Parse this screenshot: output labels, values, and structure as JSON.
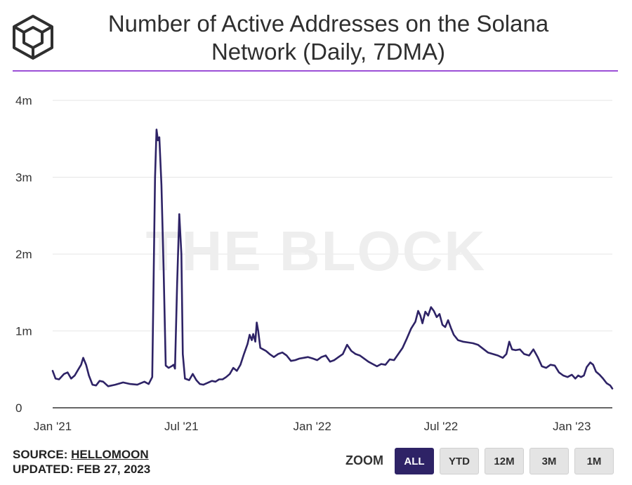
{
  "title": "Number of Active Addresses on the Solana Network (Daily, 7DMA)",
  "watermark": "THE BLOCK",
  "source_label": "SOURCE:",
  "source_name": "HELLOMOON",
  "updated": "UPDATED: FEB 27, 2023",
  "zoom": {
    "label": "ZOOM",
    "buttons": [
      "ALL",
      "YTD",
      "12M",
      "3M",
      "1M"
    ],
    "selected": "ALL"
  },
  "colors": {
    "line": "#2e2366",
    "accent": "#9b4fd6",
    "grid": "#e6e6e6"
  },
  "icon": "the-block-cube-logo",
  "chart_data": {
    "type": "line",
    "title": "Number of Active Addresses on the Solana Network (Daily, 7DMA)",
    "xlabel": "",
    "ylabel": "",
    "y_tick_labels": [
      "0",
      "1m",
      "2m",
      "3m",
      "4m"
    ],
    "y_ticks": [
      0,
      1000000,
      2000000,
      3000000,
      4000000
    ],
    "ylim": [
      0,
      4000000
    ],
    "x_tick_labels": [
      "Jan '21",
      "Jul '21",
      "Jan '22",
      "Jul '22",
      "Jan '23"
    ],
    "x_ticks": [
      "2021-01-01",
      "2021-07-01",
      "2022-01-01",
      "2022-07-01",
      "2023-01-01"
    ],
    "xlim": [
      "2021-01-01",
      "2023-02-27"
    ],
    "grid": true,
    "legend": "none",
    "series": [
      {
        "values": [
          [
            "2021-01-01",
            480000
          ],
          [
            "2021-01-05",
            380000
          ],
          [
            "2021-01-10",
            370000
          ],
          [
            "2021-01-17",
            440000
          ],
          [
            "2021-01-22",
            460000
          ],
          [
            "2021-01-27",
            380000
          ],
          [
            "2021-02-01",
            420000
          ],
          [
            "2021-02-06",
            500000
          ],
          [
            "2021-02-10",
            560000
          ],
          [
            "2021-02-13",
            650000
          ],
          [
            "2021-02-17",
            560000
          ],
          [
            "2021-02-21",
            420000
          ],
          [
            "2021-02-26",
            300000
          ],
          [
            "2021-03-03",
            290000
          ],
          [
            "2021-03-08",
            350000
          ],
          [
            "2021-03-13",
            340000
          ],
          [
            "2021-03-20",
            280000
          ],
          [
            "2021-03-30",
            300000
          ],
          [
            "2021-04-10",
            330000
          ],
          [
            "2021-04-20",
            310000
          ],
          [
            "2021-04-30",
            300000
          ],
          [
            "2021-05-10",
            340000
          ],
          [
            "2021-05-16",
            310000
          ],
          [
            "2021-05-21",
            400000
          ],
          [
            "2021-05-25",
            3000000
          ],
          [
            "2021-05-27",
            3620000
          ],
          [
            "2021-05-29",
            3480000
          ],
          [
            "2021-05-31",
            3520000
          ],
          [
            "2021-06-03",
            2900000
          ],
          [
            "2021-06-06",
            1800000
          ],
          [
            "2021-06-09",
            550000
          ],
          [
            "2021-06-13",
            520000
          ],
          [
            "2021-06-17",
            540000
          ],
          [
            "2021-06-20",
            560000
          ],
          [
            "2021-06-22",
            510000
          ],
          [
            "2021-06-25",
            1600000
          ],
          [
            "2021-06-28",
            2520000
          ],
          [
            "2021-07-01",
            2000000
          ],
          [
            "2021-07-03",
            700000
          ],
          [
            "2021-07-06",
            380000
          ],
          [
            "2021-07-12",
            360000
          ],
          [
            "2021-07-17",
            440000
          ],
          [
            "2021-07-22",
            360000
          ],
          [
            "2021-07-27",
            310000
          ],
          [
            "2021-08-01",
            300000
          ],
          [
            "2021-08-08",
            330000
          ],
          [
            "2021-08-13",
            350000
          ],
          [
            "2021-08-18",
            340000
          ],
          [
            "2021-08-23",
            370000
          ],
          [
            "2021-08-28",
            370000
          ],
          [
            "2021-09-02",
            400000
          ],
          [
            "2021-09-07",
            440000
          ],
          [
            "2021-09-12",
            520000
          ],
          [
            "2021-09-17",
            480000
          ],
          [
            "2021-09-22",
            560000
          ],
          [
            "2021-09-27",
            700000
          ],
          [
            "2021-10-02",
            830000
          ],
          [
            "2021-10-05",
            950000
          ],
          [
            "2021-10-08",
            880000
          ],
          [
            "2021-10-10",
            960000
          ],
          [
            "2021-10-13",
            860000
          ],
          [
            "2021-10-15",
            1110000
          ],
          [
            "2021-10-17",
            1000000
          ],
          [
            "2021-10-20",
            780000
          ],
          [
            "2021-10-24",
            760000
          ],
          [
            "2021-10-28",
            740000
          ],
          [
            "2021-11-02",
            700000
          ],
          [
            "2021-11-08",
            660000
          ],
          [
            "2021-11-14",
            700000
          ],
          [
            "2021-11-20",
            720000
          ],
          [
            "2021-11-26",
            680000
          ],
          [
            "2021-12-02",
            610000
          ],
          [
            "2021-12-08",
            620000
          ],
          [
            "2021-12-14",
            640000
          ],
          [
            "2021-12-20",
            650000
          ],
          [
            "2021-12-26",
            660000
          ],
          [
            "2022-01-02",
            640000
          ],
          [
            "2022-01-08",
            620000
          ],
          [
            "2022-01-14",
            660000
          ],
          [
            "2022-01-20",
            680000
          ],
          [
            "2022-01-26",
            600000
          ],
          [
            "2022-02-01",
            620000
          ],
          [
            "2022-02-07",
            660000
          ],
          [
            "2022-02-13",
            700000
          ],
          [
            "2022-02-19",
            820000
          ],
          [
            "2022-02-25",
            740000
          ],
          [
            "2022-03-03",
            700000
          ],
          [
            "2022-03-09",
            680000
          ],
          [
            "2022-03-15",
            640000
          ],
          [
            "2022-03-21",
            600000
          ],
          [
            "2022-03-27",
            570000
          ],
          [
            "2022-04-02",
            540000
          ],
          [
            "2022-04-08",
            570000
          ],
          [
            "2022-04-14",
            560000
          ],
          [
            "2022-04-20",
            630000
          ],
          [
            "2022-04-26",
            620000
          ],
          [
            "2022-05-02",
            700000
          ],
          [
            "2022-05-08",
            780000
          ],
          [
            "2022-05-14",
            900000
          ],
          [
            "2022-05-20",
            1030000
          ],
          [
            "2022-05-26",
            1120000
          ],
          [
            "2022-05-30",
            1260000
          ],
          [
            "2022-06-02",
            1200000
          ],
          [
            "2022-06-05",
            1100000
          ],
          [
            "2022-06-09",
            1250000
          ],
          [
            "2022-06-13",
            1200000
          ],
          [
            "2022-06-17",
            1310000
          ],
          [
            "2022-06-21",
            1260000
          ],
          [
            "2022-06-25",
            1180000
          ],
          [
            "2022-06-29",
            1220000
          ],
          [
            "2022-07-03",
            1080000
          ],
          [
            "2022-07-07",
            1050000
          ],
          [
            "2022-07-11",
            1140000
          ],
          [
            "2022-07-15",
            1040000
          ],
          [
            "2022-07-19",
            950000
          ],
          [
            "2022-07-25",
            880000
          ],
          [
            "2022-08-01",
            860000
          ],
          [
            "2022-08-08",
            850000
          ],
          [
            "2022-08-15",
            840000
          ],
          [
            "2022-08-22",
            820000
          ],
          [
            "2022-08-29",
            770000
          ],
          [
            "2022-09-05",
            720000
          ],
          [
            "2022-09-12",
            700000
          ],
          [
            "2022-09-19",
            680000
          ],
          [
            "2022-09-26",
            650000
          ],
          [
            "2022-10-01",
            700000
          ],
          [
            "2022-10-05",
            860000
          ],
          [
            "2022-10-09",
            760000
          ],
          [
            "2022-10-14",
            750000
          ],
          [
            "2022-10-20",
            760000
          ],
          [
            "2022-10-26",
            700000
          ],
          [
            "2022-11-02",
            680000
          ],
          [
            "2022-11-08",
            760000
          ],
          [
            "2022-11-14",
            660000
          ],
          [
            "2022-11-20",
            540000
          ],
          [
            "2022-11-26",
            520000
          ],
          [
            "2022-12-02",
            560000
          ],
          [
            "2022-12-08",
            550000
          ],
          [
            "2022-12-14",
            460000
          ],
          [
            "2022-12-20",
            420000
          ],
          [
            "2022-12-26",
            400000
          ],
          [
            "2023-01-01",
            430000
          ],
          [
            "2023-01-06",
            380000
          ],
          [
            "2023-01-10",
            420000
          ],
          [
            "2023-01-14",
            400000
          ],
          [
            "2023-01-18",
            420000
          ],
          [
            "2023-01-22",
            530000
          ],
          [
            "2023-01-27",
            590000
          ],
          [
            "2023-01-31",
            560000
          ],
          [
            "2023-02-04",
            470000
          ],
          [
            "2023-02-09",
            430000
          ],
          [
            "2023-02-14",
            380000
          ],
          [
            "2023-02-19",
            320000
          ],
          [
            "2023-02-24",
            290000
          ],
          [
            "2023-02-27",
            250000
          ]
        ]
      }
    ]
  }
}
